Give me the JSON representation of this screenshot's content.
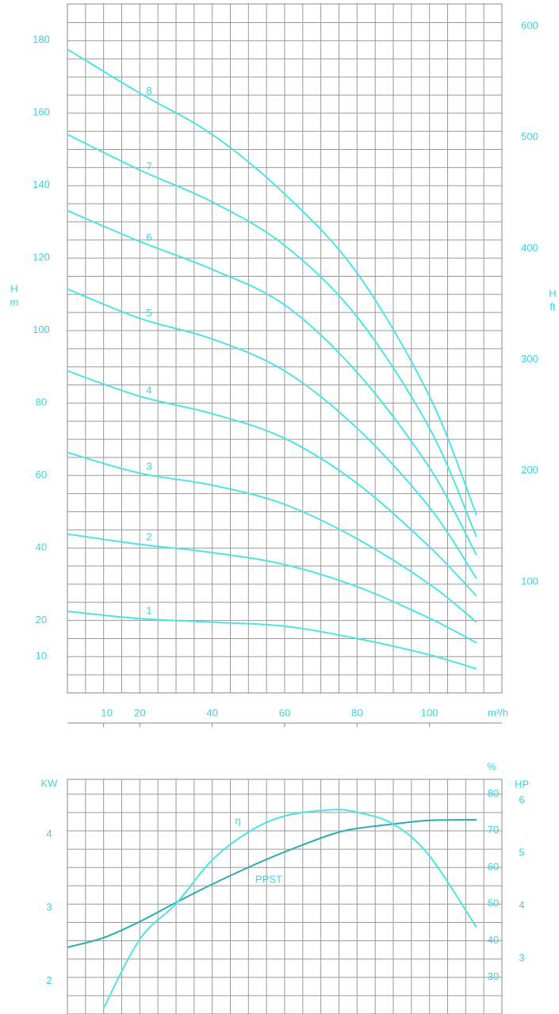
{
  "chart_data": [
    {
      "type": "line",
      "y_label": "H",
      "y_unit": "m",
      "y2_label": "H",
      "y2_unit": "ft",
      "x_label": "m³/h",
      "x": [
        0,
        20,
        40,
        60,
        80,
        100,
        113
      ],
      "xlim": [
        0,
        120
      ],
      "xticks": [
        10,
        20,
        40,
        60,
        80,
        100
      ],
      "ylim": [
        0,
        190
      ],
      "yticks": [
        10,
        20,
        40,
        60,
        80,
        100,
        120,
        140,
        160,
        180
      ],
      "y2lim": [
        0,
        620
      ],
      "y2ticks": [
        100,
        200,
        300,
        400,
        500,
        600
      ],
      "grid": true,
      "series": [
        {
          "name": "1",
          "color": "#4fe3e6",
          "values": [
            22.5,
            20.5,
            19.5,
            18.4,
            15,
            10.5,
            6.6
          ]
        },
        {
          "name": "2",
          "color": "#4fe3e6",
          "values": [
            43.8,
            41,
            38.7,
            35.4,
            29.3,
            20.6,
            13.8
          ]
        },
        {
          "name": "3",
          "color": "#4fe3e6",
          "values": [
            66.3,
            60.6,
            57.3,
            52,
            42.5,
            30,
            19.5
          ]
        },
        {
          "name": "4",
          "color": "#4fe3e6",
          "values": [
            88.8,
            81.8,
            77,
            70.2,
            57.8,
            40.3,
            26.7
          ]
        },
        {
          "name": "5",
          "color": "#4fe3e6",
          "values": [
            111.4,
            103.3,
            97.6,
            88.8,
            73,
            51.2,
            31.5
          ]
        },
        {
          "name": "6",
          "color": "#4fe3e6",
          "values": [
            133,
            124.5,
            116.8,
            107,
            88.4,
            62.1,
            38
          ]
        },
        {
          "name": "7",
          "color": "#4fe3e6",
          "values": [
            154,
            144.2,
            135.4,
            123.4,
            103.7,
            73,
            43
          ]
        },
        {
          "name": "8",
          "color": "#4fe3e6",
          "values": [
            177.5,
            165.4,
            154,
            137.6,
            115.8,
            81.8,
            49
          ]
        }
      ]
    },
    {
      "type": "line",
      "y_label": "KW",
      "y2_label": "%",
      "y3_label": "HP",
      "x": [
        0,
        10,
        20,
        30,
        40,
        50,
        60,
        73,
        80,
        90,
        100,
        113
      ],
      "xlim": [
        0,
        120
      ],
      "ylim": [
        1.55,
        4.75
      ],
      "yticks": [
        2,
        3,
        4
      ],
      "y2lim": [
        20,
        84
      ],
      "y2ticks": [
        30,
        40,
        50,
        60,
        70,
        80
      ],
      "y3lim": [
        1.95,
        6.4
      ],
      "y3ticks": [
        3,
        4,
        5,
        6
      ],
      "grid": true,
      "series": [
        {
          "name": "PPST",
          "color": "#2aaeb0",
          "values": [
            2.46,
            2.59,
            2.81,
            3.07,
            3.32,
            3.55,
            3.76,
            4.0,
            4.08,
            4.14,
            4.19,
            4.2
          ]
        },
        {
          "name": "η",
          "color": "#4fe3e6",
          "axis": "y2",
          "values": [
            null,
            21.6,
            40.4,
            50.1,
            62,
            69.6,
            74,
            75.7,
            75,
            71.8,
            63.1,
            43.6
          ]
        }
      ]
    }
  ]
}
